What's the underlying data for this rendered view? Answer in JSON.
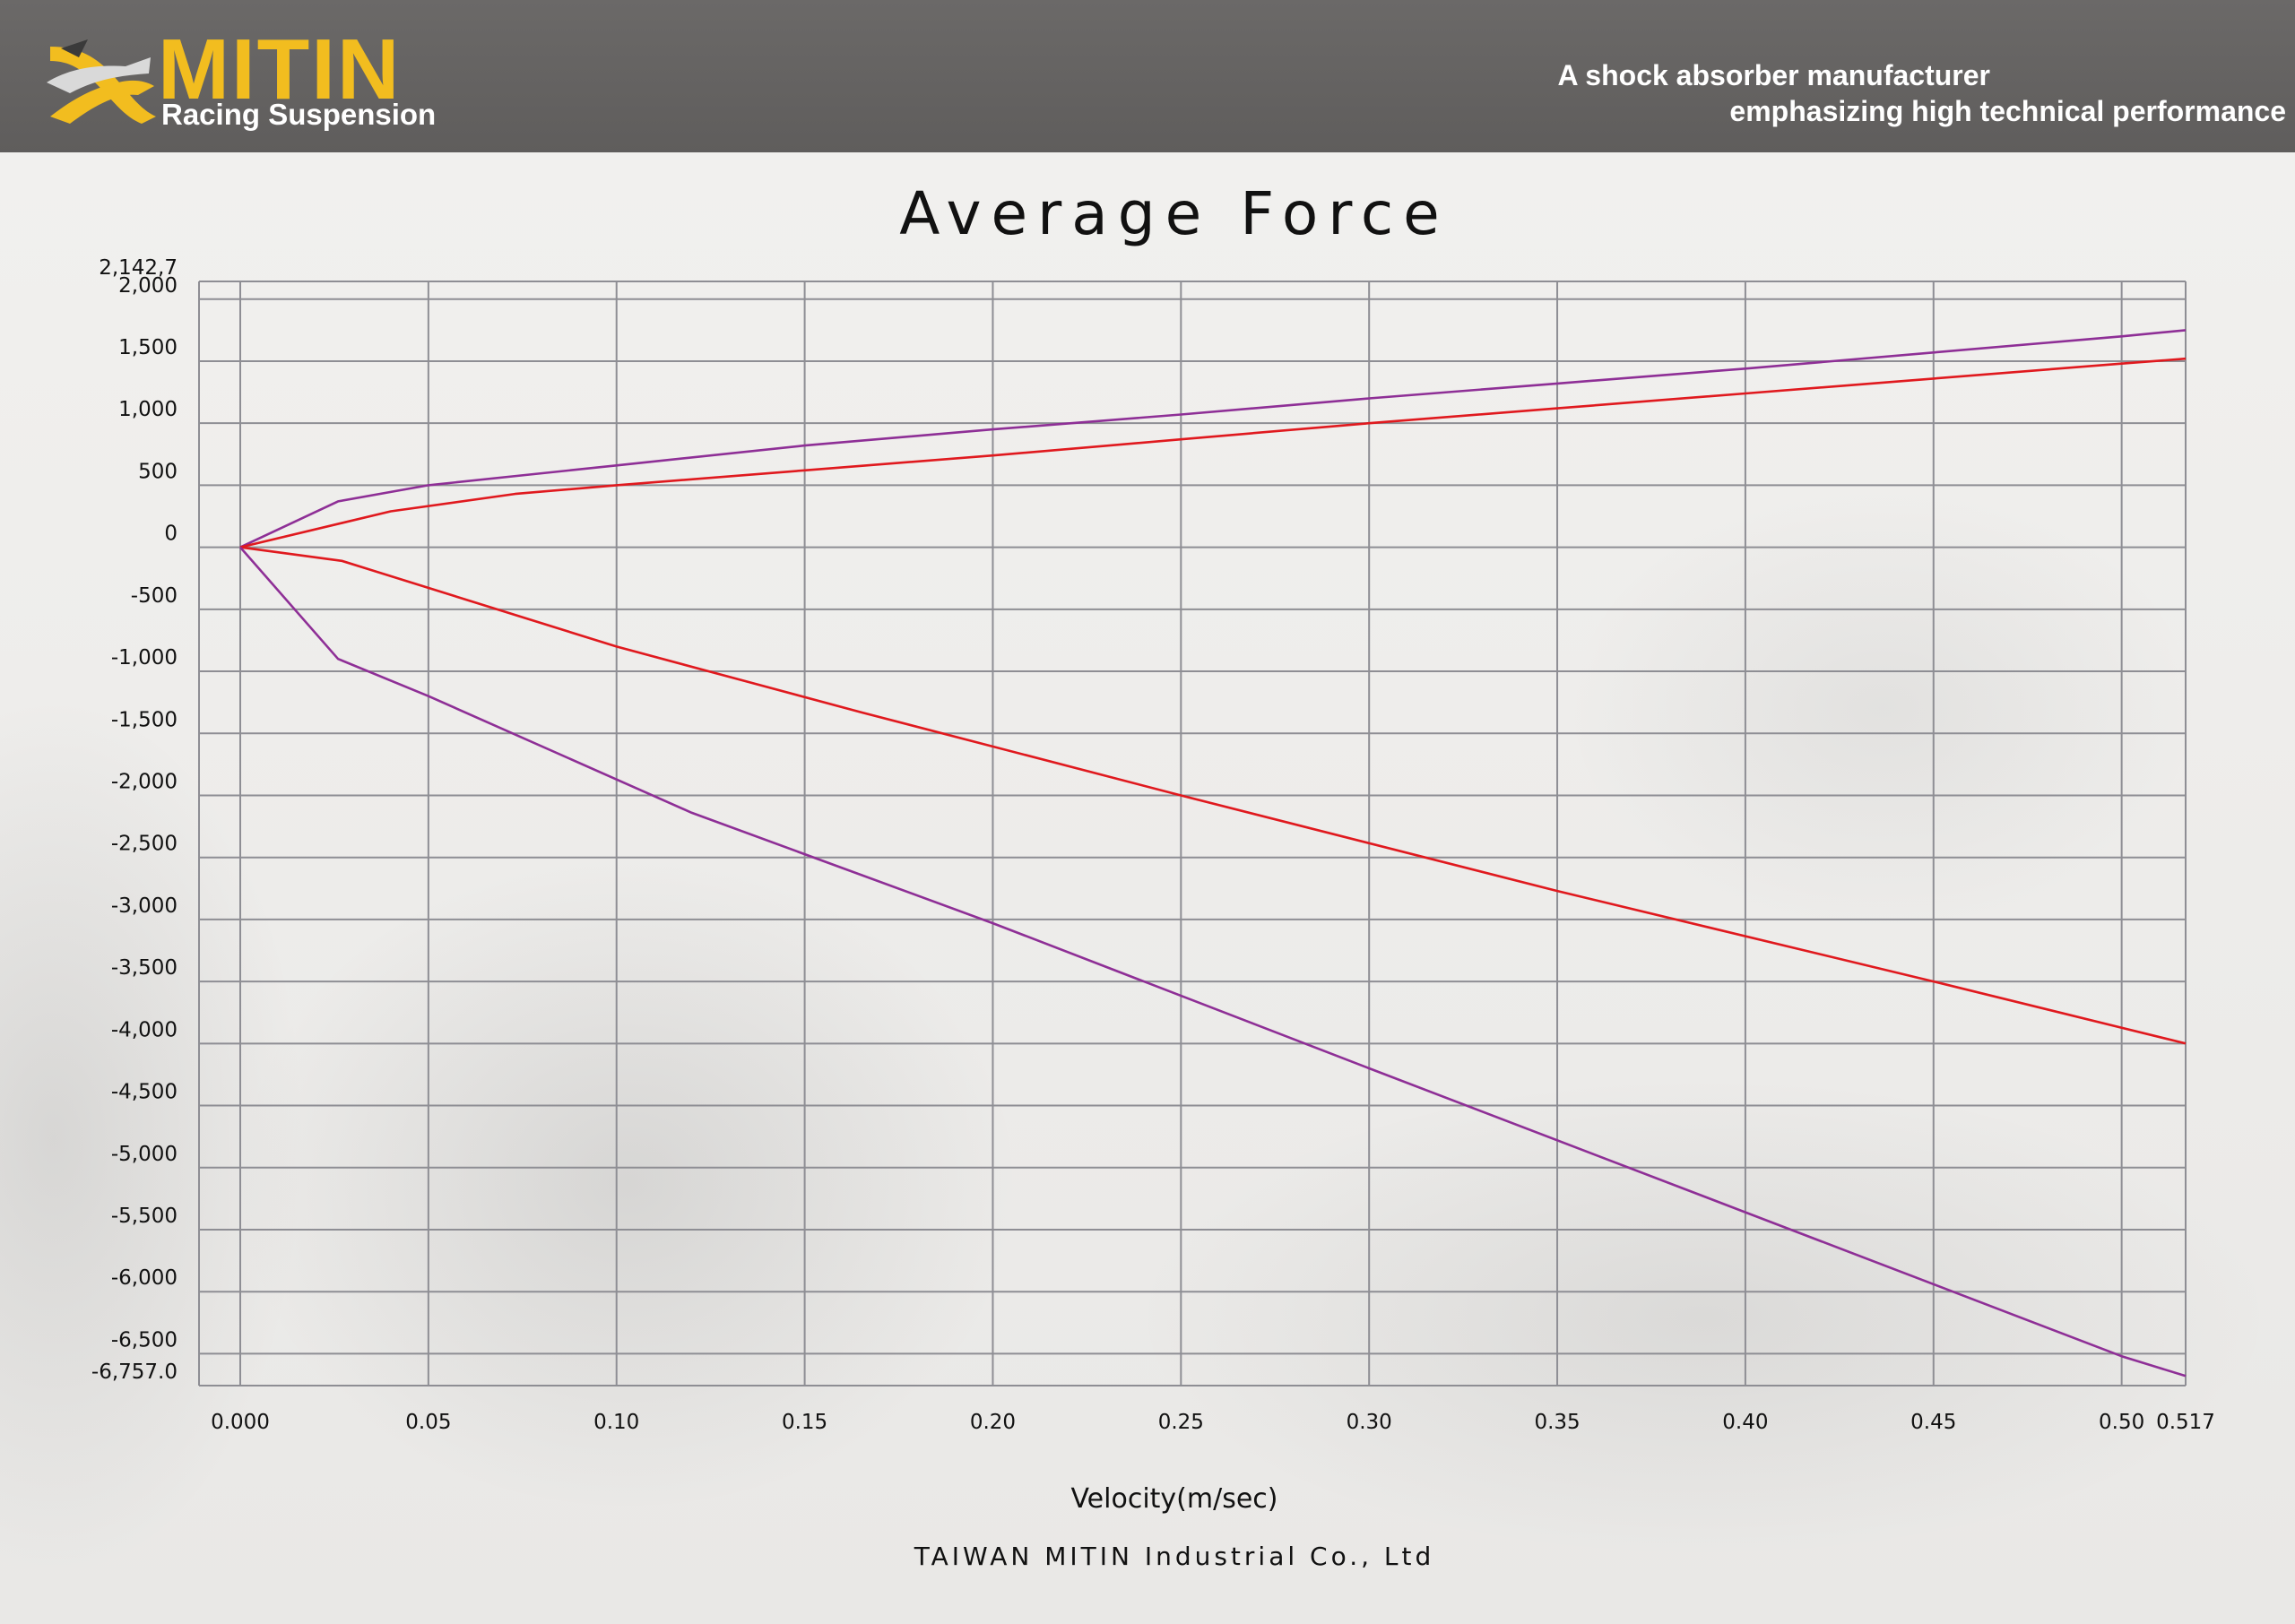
{
  "header": {
    "logo_word": "MITIN",
    "logo_sub": "Racing Suspension",
    "tagline_line1": "A shock absorber manufacturer",
    "tagline_line2": "emphasizing high technical performance"
  },
  "company": "TAIWAN MITIN Industrial Co., Ltd",
  "colors": {
    "header_bg": "#636160",
    "logo_yellow": "#f2bd1f",
    "series_purple": "#8e2f96",
    "series_red": "#e0191e",
    "grid": "#8e8e94"
  },
  "chart_data": {
    "type": "line",
    "title": "Average Force",
    "xlabel": "Velocity(m/sec)",
    "ylabel": "",
    "xlim": [
      0.0,
      0.517
    ],
    "ylim": [
      -6757.0,
      2142.7
    ],
    "grid": true,
    "x_ticks": [
      {
        "value": 0.0,
        "label": "0.000"
      },
      {
        "value": 0.05,
        "label": "0.05"
      },
      {
        "value": 0.1,
        "label": "0.10"
      },
      {
        "value": 0.15,
        "label": "0.15"
      },
      {
        "value": 0.2,
        "label": "0.20"
      },
      {
        "value": 0.25,
        "label": "0.25"
      },
      {
        "value": 0.3,
        "label": "0.30"
      },
      {
        "value": 0.35,
        "label": "0.35"
      },
      {
        "value": 0.4,
        "label": "0.40"
      },
      {
        "value": 0.45,
        "label": "0.45"
      },
      {
        "value": 0.5,
        "label": "0.50"
      },
      {
        "value": 0.517,
        "label": "0.517"
      }
    ],
    "y_ticks": [
      {
        "value": 2142.7,
        "label": "2,142,7"
      },
      {
        "value": 2000,
        "label": "2,000"
      },
      {
        "value": 1500,
        "label": "1,500"
      },
      {
        "value": 1000,
        "label": "1,000"
      },
      {
        "value": 500,
        "label": "500"
      },
      {
        "value": 0,
        "label": "0"
      },
      {
        "value": -500,
        "label": "-500"
      },
      {
        "value": -1000,
        "label": "-1,000"
      },
      {
        "value": -1500,
        "label": "-1,500"
      },
      {
        "value": -2000,
        "label": "-2,000"
      },
      {
        "value": -2500,
        "label": "-2,500"
      },
      {
        "value": -3000,
        "label": "-3,000"
      },
      {
        "value": -3500,
        "label": "-3,500"
      },
      {
        "value": -4000,
        "label": "-4,000"
      },
      {
        "value": -4500,
        "label": "-4,500"
      },
      {
        "value": -5000,
        "label": "-5,000"
      },
      {
        "value": -5500,
        "label": "-5,500"
      },
      {
        "value": -6000,
        "label": "-6,000"
      },
      {
        "value": -6500,
        "label": "-6,500"
      },
      {
        "value": -6757.0,
        "label": "-6,757.0"
      }
    ],
    "series": [
      {
        "color": "#8e2f96",
        "x": [
          0.0,
          0.026,
          0.05,
          0.1,
          0.15,
          0.2,
          0.25,
          0.3,
          0.35,
          0.4,
          0.45,
          0.5,
          0.517
        ],
        "y": [
          0,
          370,
          500,
          660,
          820,
          950,
          1070,
          1200,
          1320,
          1440,
          1570,
          1700,
          1750
        ]
      },
      {
        "color": "#e0191e",
        "x": [
          0.0,
          0.04,
          0.073,
          0.1,
          0.15,
          0.2,
          0.25,
          0.3,
          0.35,
          0.4,
          0.45,
          0.5,
          0.517
        ],
        "y": [
          0,
          290,
          430,
          500,
          620,
          740,
          870,
          1000,
          1120,
          1240,
          1360,
          1480,
          1520
        ]
      },
      {
        "color": "#e0191e",
        "x": [
          0.0,
          0.027,
          0.1,
          0.165,
          0.25,
          0.35,
          0.45,
          0.517
        ],
        "y": [
          0,
          -110,
          -800,
          -1330,
          -2000,
          -2770,
          -3500,
          -4000
        ]
      },
      {
        "color": "#8e2f96",
        "x": [
          0.0,
          0.026,
          0.05,
          0.12,
          0.2,
          0.3,
          0.4,
          0.5,
          0.517
        ],
        "y": [
          0,
          -900,
          -1200,
          -2140,
          -3030,
          -4200,
          -5360,
          -6520,
          -6680
        ]
      }
    ]
  }
}
